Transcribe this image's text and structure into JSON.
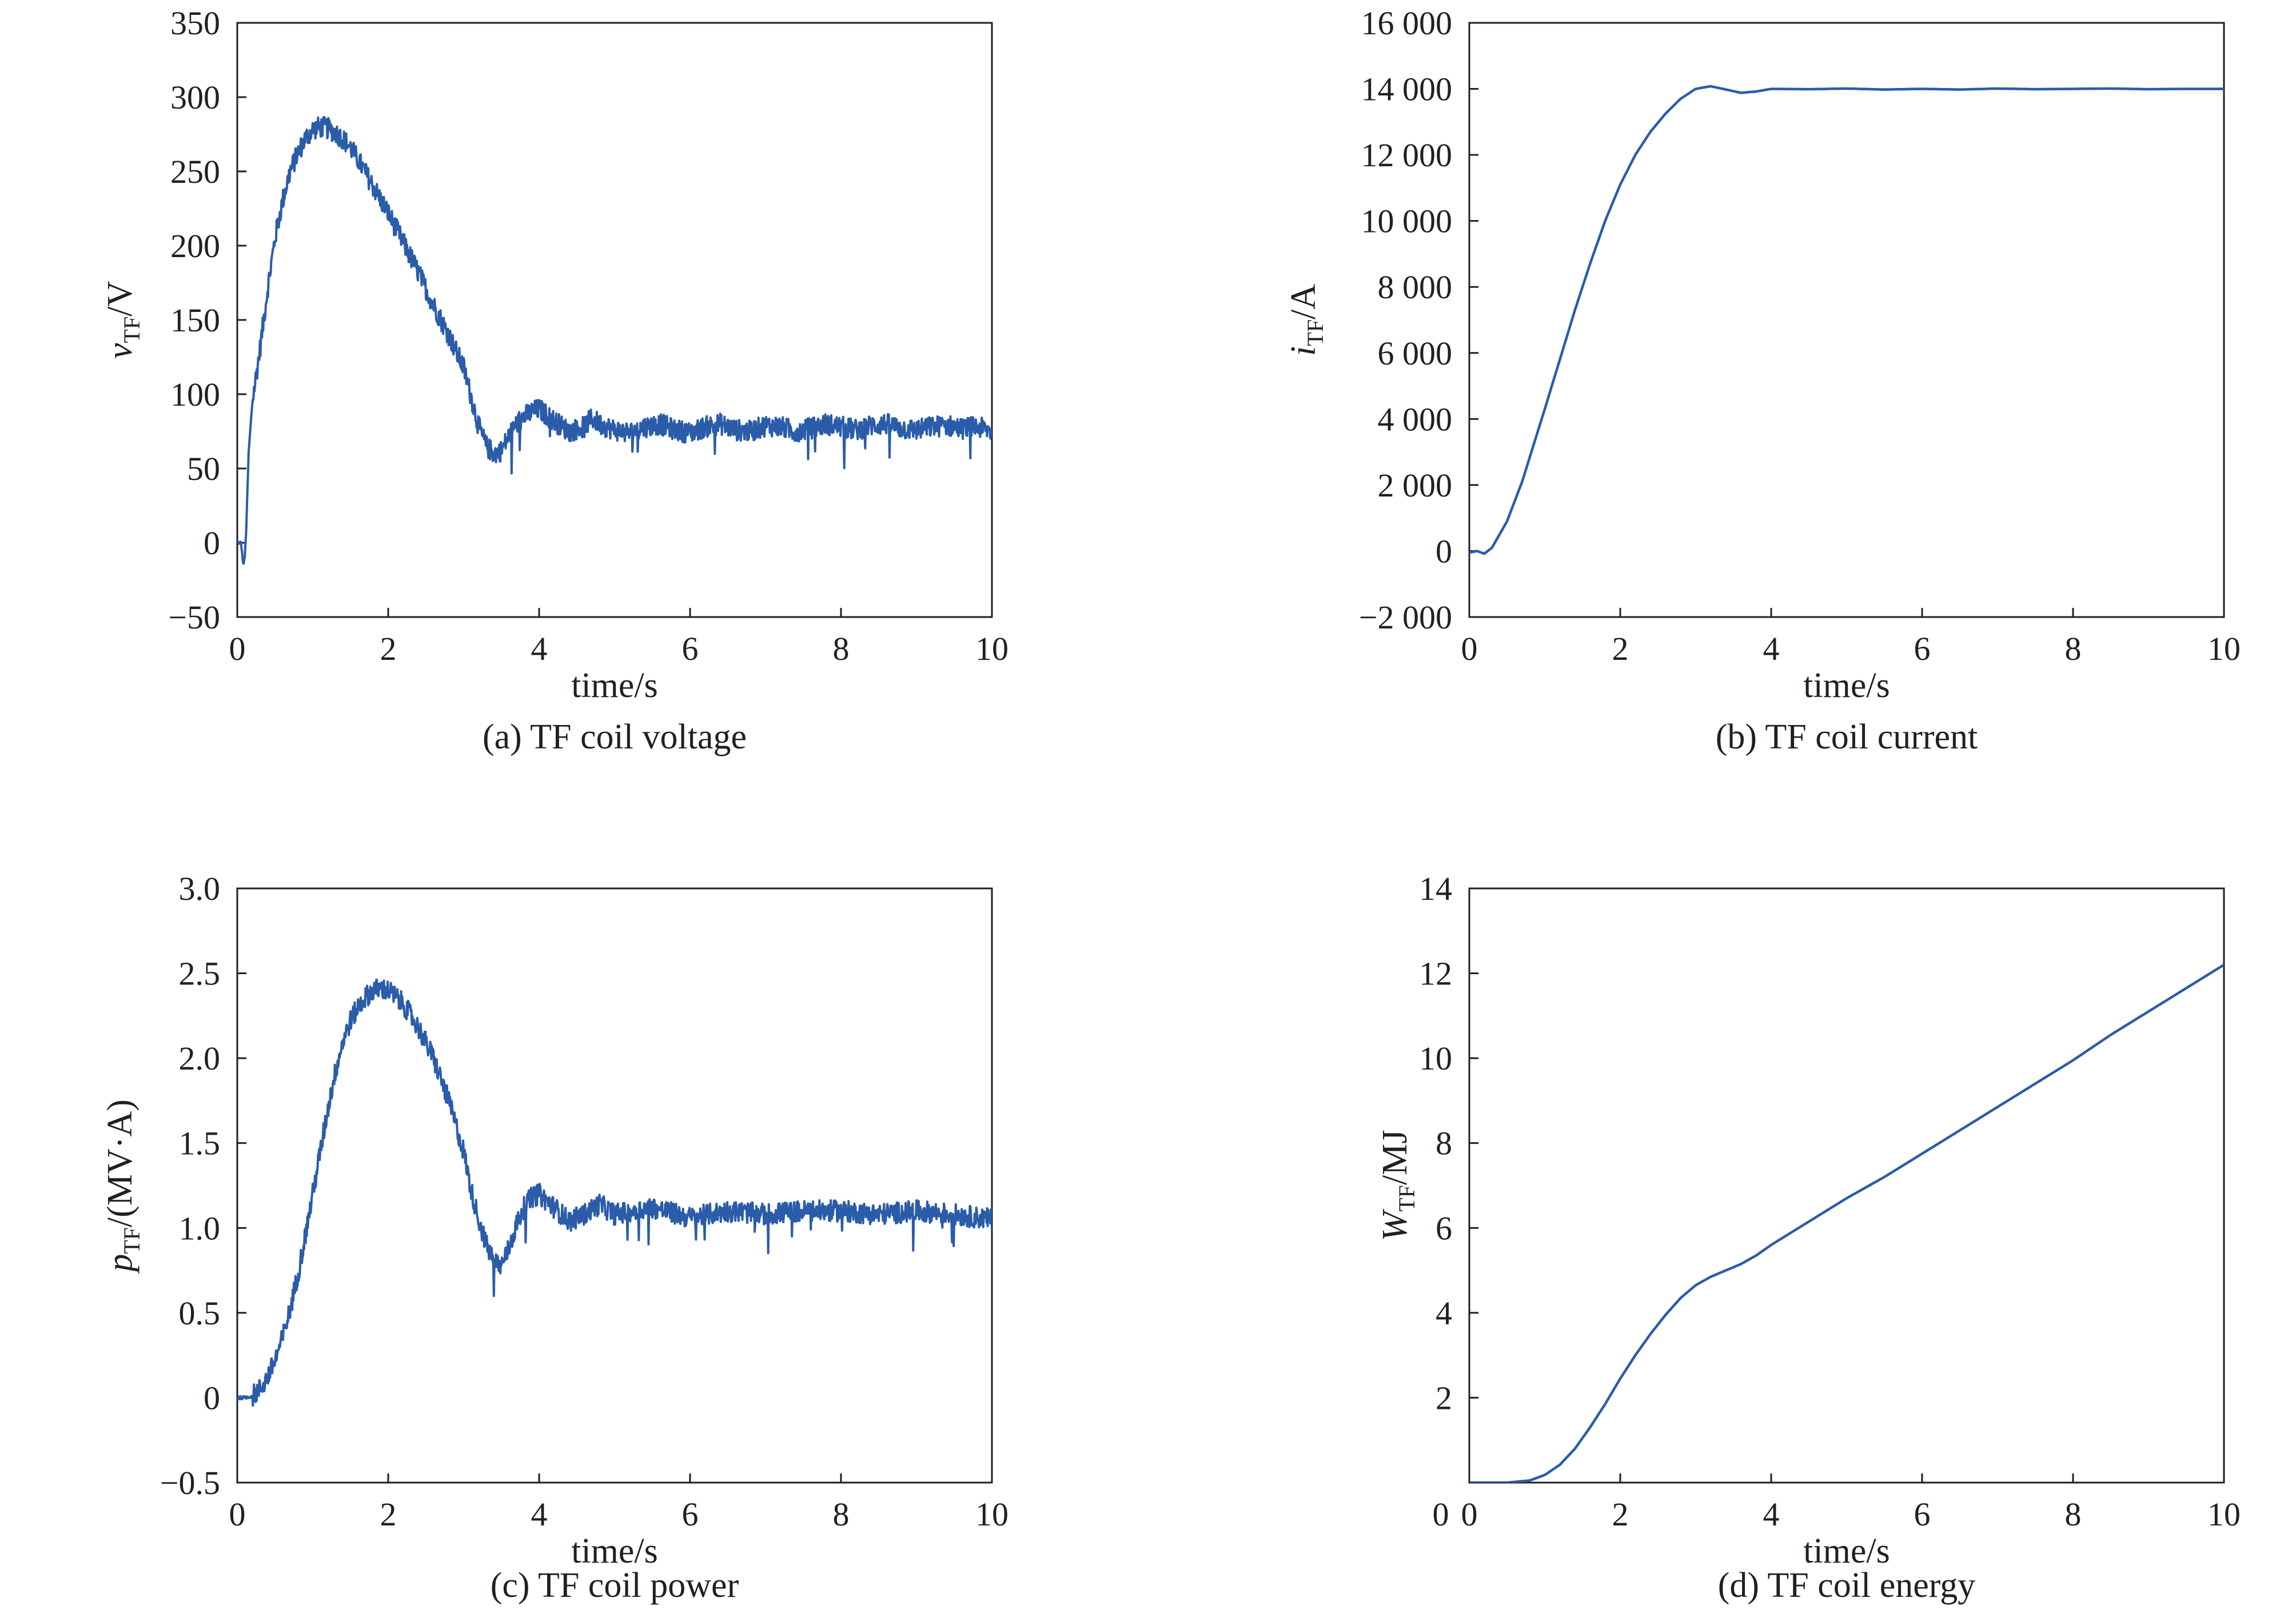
{
  "colors": {
    "series": "#2a5caa",
    "axis": "#231f20",
    "background": "#ffffff"
  },
  "chart_data": [
    {
      "id": "a",
      "type": "line",
      "title": "(a) TF coil voltage",
      "xlabel": "time/s",
      "ylabel": {
        "main": "v",
        "sub": "TF",
        "unit": "/V"
      },
      "xlim": [
        0,
        10
      ],
      "ylim": [
        -50,
        350
      ],
      "xticks": [
        0,
        2,
        4,
        6,
        8,
        10
      ],
      "xtick_labels": [
        "0",
        "2",
        "4",
        "6",
        "8",
        "10"
      ],
      "yticks": [
        -50,
        0,
        50,
        100,
        150,
        200,
        250,
        300,
        350
      ],
      "ytick_labels": [
        "−50",
        "0",
        "50",
        "100",
        "150",
        "200",
        "250",
        "300",
        "350"
      ],
      "grid": false,
      "noisy": true,
      "series": [
        {
          "x": [
            0,
            0.05,
            0.08,
            0.1,
            0.12,
            0.15,
            0.2,
            0.3,
            0.4,
            0.5,
            0.6,
            0.7,
            0.8,
            0.9,
            1.0,
            1.1,
            1.2,
            1.3,
            1.4,
            1.5,
            1.6,
            1.8,
            2.0,
            2.2,
            2.4,
            2.6,
            2.8,
            3.0,
            3.1,
            3.2,
            3.3,
            3.4,
            3.5,
            3.6,
            3.7,
            3.8,
            3.9,
            4.0,
            4.2,
            4.4,
            4.6,
            4.7,
            4.8,
            5.0,
            5.2,
            5.4,
            5.6,
            5.8,
            6.0,
            6.2,
            6.4,
            6.6,
            6.8,
            7.0,
            7.2,
            7.4,
            7.6,
            7.8,
            8.0,
            8.2,
            8.4,
            8.6,
            8.8,
            9.0,
            9.2,
            9.4,
            9.6,
            9.8,
            10.0
          ],
          "y": [
            0,
            0,
            -15,
            -10,
            10,
            60,
            95,
            130,
            170,
            205,
            230,
            250,
            262,
            272,
            278,
            280,
            279,
            276,
            272,
            266,
            258,
            240,
            222,
            202,
            182,
            160,
            140,
            118,
            98,
            78,
            65,
            60,
            62,
            72,
            80,
            85,
            88,
            90,
            82,
            75,
            78,
            84,
            80,
            76,
            74,
            78,
            80,
            76,
            74,
            78,
            80,
            76,
            75,
            79,
            78,
            75,
            77,
            80,
            78,
            76,
            79,
            80,
            77,
            76,
            78,
            79,
            77,
            78,
            75
          ]
        }
      ]
    },
    {
      "id": "b",
      "type": "line",
      "title": "(b) TF coil current",
      "xlabel": "time/s",
      "ylabel": {
        "main": "i",
        "sub": "TF",
        "unit": "/A"
      },
      "xlim": [
        0,
        10
      ],
      "ylim": [
        -2000,
        16000
      ],
      "xticks": [
        0,
        2,
        4,
        6,
        8,
        10
      ],
      "xtick_labels": [
        "0",
        "2",
        "4",
        "6",
        "8",
        "10"
      ],
      "yticks": [
        -2000,
        0,
        2000,
        4000,
        6000,
        8000,
        10000,
        12000,
        14000,
        16000
      ],
      "ytick_labels": [
        "−2 000",
        "0",
        "2 000",
        "4 000",
        "6 000",
        "8 000",
        "10 000",
        "12 000",
        "14 000",
        "16 000"
      ],
      "grid": false,
      "noisy": false,
      "series": [
        {
          "x": [
            0,
            0.1,
            0.2,
            0.3,
            0.5,
            0.7,
            1.0,
            1.2,
            1.4,
            1.6,
            1.8,
            2.0,
            2.2,
            2.4,
            2.6,
            2.8,
            3.0,
            3.2,
            3.4,
            3.6,
            3.8,
            4.0,
            4.5,
            5.0,
            5.5,
            6.0,
            6.5,
            7.0,
            7.5,
            8.0,
            8.5,
            9.0,
            9.5,
            10.0
          ],
          "y": [
            -50,
            0,
            -80,
            100,
            900,
            2100,
            4300,
            5800,
            7300,
            8700,
            10000,
            11100,
            12000,
            12700,
            13250,
            13700,
            14000,
            14080,
            13980,
            13880,
            13920,
            14000,
            13990,
            14010,
            13980,
            14000,
            13980,
            14010,
            13990,
            14000,
            14010,
            13990,
            14000,
            14000
          ]
        }
      ]
    },
    {
      "id": "c",
      "type": "line",
      "title": "(c) TF coil power",
      "xlabel": "time/s",
      "ylabel": {
        "main": "p",
        "sub": "TF",
        "unit": "/(MV·A)"
      },
      "xlim": [
        0,
        10
      ],
      "ylim": [
        -0.5,
        3.0
      ],
      "xticks": [
        0,
        2,
        4,
        6,
        8,
        10
      ],
      "xtick_labels": [
        "0",
        "2",
        "4",
        "6",
        "8",
        "10"
      ],
      "yticks": [
        -0.5,
        0,
        0.5,
        1.0,
        1.5,
        2.0,
        2.5,
        3.0
      ],
      "ytick_labels": [
        "−0.5",
        "0",
        "0.5",
        "1.0",
        "1.5",
        "2.0",
        "2.5",
        "3.0"
      ],
      "grid": false,
      "noisy": true,
      "series": [
        {
          "x": [
            0,
            0.1,
            0.2,
            0.3,
            0.4,
            0.5,
            0.6,
            0.7,
            0.8,
            0.9,
            1.0,
            1.1,
            1.2,
            1.3,
            1.4,
            1.5,
            1.6,
            1.7,
            1.8,
            1.9,
            2.0,
            2.2,
            2.4,
            2.6,
            2.8,
            3.0,
            3.1,
            3.2,
            3.3,
            3.4,
            3.5,
            3.6,
            3.7,
            3.8,
            3.9,
            4.0,
            4.2,
            4.4,
            4.6,
            4.8,
            5.0,
            5.5,
            6.0,
            6.5,
            7.0,
            7.5,
            8.0,
            8.5,
            9.0,
            9.5,
            10.0
          ],
          "y": [
            0,
            0,
            0.01,
            0.05,
            0.12,
            0.22,
            0.35,
            0.52,
            0.72,
            0.95,
            1.2,
            1.45,
            1.7,
            1.92,
            2.1,
            2.22,
            2.3,
            2.36,
            2.4,
            2.41,
            2.4,
            2.32,
            2.18,
            2.0,
            1.75,
            1.45,
            1.22,
            1.05,
            0.9,
            0.8,
            0.78,
            0.88,
            1.02,
            1.12,
            1.18,
            1.2,
            1.12,
            1.04,
            1.08,
            1.14,
            1.08,
            1.12,
            1.06,
            1.1,
            1.08,
            1.1,
            1.1,
            1.08,
            1.1,
            1.08,
            1.05
          ]
        }
      ]
    },
    {
      "id": "d",
      "type": "line",
      "title": "(d) TF coil energy",
      "xlabel": "time/s",
      "ylabel": {
        "main": "W",
        "sub": "TF",
        "unit": "/MJ"
      },
      "xlim": [
        0,
        10
      ],
      "ylim": [
        0,
        14
      ],
      "xticks": [
        0,
        2,
        4,
        6,
        8,
        10
      ],
      "xtick_labels": [
        "0",
        "2",
        "4",
        "6",
        "8",
        "10"
      ],
      "yticks": [
        2,
        4,
        6,
        8,
        10,
        12,
        14
      ],
      "ytick_labels": [
        "2",
        "4",
        "6",
        "8",
        "10",
        "12",
        "14"
      ],
      "grid": false,
      "noisy": false,
      "series": [
        {
          "x": [
            0,
            0.5,
            0.8,
            1.0,
            1.2,
            1.4,
            1.6,
            1.8,
            2.0,
            2.2,
            2.4,
            2.6,
            2.8,
            3.0,
            3.2,
            3.4,
            3.6,
            3.8,
            4.0,
            4.5,
            5.0,
            5.5,
            6.0,
            6.5,
            7.0,
            7.5,
            8.0,
            8.5,
            9.0,
            9.5,
            10.0
          ],
          "y": [
            0,
            0,
            0.05,
            0.18,
            0.42,
            0.8,
            1.3,
            1.85,
            2.45,
            3.0,
            3.5,
            3.95,
            4.35,
            4.65,
            4.85,
            5.0,
            5.15,
            5.35,
            5.6,
            6.15,
            6.7,
            7.2,
            7.75,
            8.3,
            8.85,
            9.4,
            9.95,
            10.55,
            11.1,
            11.65,
            12.2
          ]
        }
      ]
    }
  ]
}
